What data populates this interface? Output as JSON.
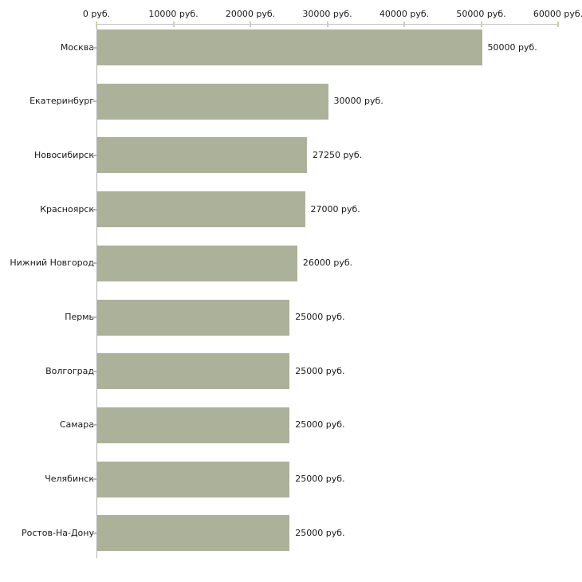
{
  "chart_data": {
    "type": "bar",
    "orientation": "horizontal",
    "title": "",
    "xlabel": "",
    "ylabel": "",
    "categories": [
      "Москва",
      "Екатеринбург",
      "Новосибирск",
      "Красноярск",
      "Нижний Новгород",
      "Пермь",
      "Волгоград",
      "Самара",
      "Челябинск",
      "Ростов-На-Дону"
    ],
    "values": [
      50000,
      30000,
      27250,
      27000,
      26000,
      25000,
      25000,
      25000,
      25000,
      25000
    ],
    "value_labels": [
      "50000 руб.",
      "30000 руб.",
      "27250 руб.",
      "27000 руб.",
      "26000 руб.",
      "25000 руб.",
      "25000 руб.",
      "25000 руб.",
      "25000 руб.",
      "25000 руб."
    ],
    "x_axis": {
      "position": "top",
      "min": 0,
      "max": 60000,
      "tick_values": [
        0,
        10000,
        20000,
        30000,
        40000,
        50000,
        60000
      ],
      "tick_labels": [
        "0 руб.",
        "10000 руб.",
        "20000 руб.",
        "30000 руб.",
        "40000 руб.",
        "50000 руб.",
        "60000 руб."
      ]
    },
    "grid": false,
    "legend": false,
    "colors": {
      "bar": "#acb199",
      "axis_line_horizontal": "#c8c8c8",
      "axis_line_vertical": "#b2b2b2",
      "tick": "#d0cdb2",
      "category_tick": "#bdbaa0",
      "text": "#1a1a1a",
      "background": "#ffffff"
    }
  }
}
